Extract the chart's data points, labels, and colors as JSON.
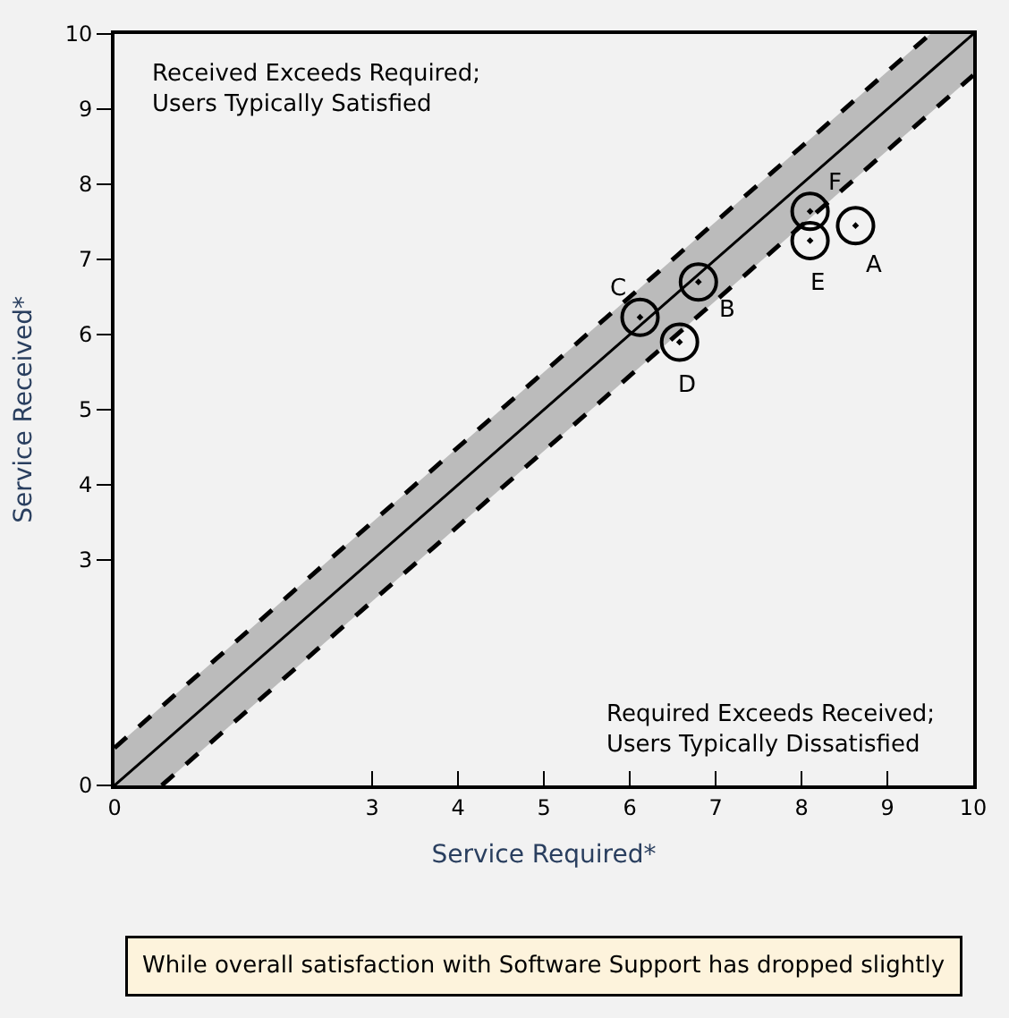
{
  "chart_data": {
    "type": "scatter",
    "xlabel": "Service Required*",
    "ylabel": "Service Received*",
    "series": [
      {
        "type": "line",
        "color": "#000000",
        "x": [
          0,
          0.55,
          9.5,
          10
        ],
        "values": [
          0,
          0.55,
          9.5,
          10
        ],
        "lower": [
          0,
          0,
          8.95,
          9.45
        ],
        "upper": [
          0.5,
          1.05,
          10,
          10
        ],
        "line_style": "solid",
        "marker": "none"
      },
      {
        "type": "line",
        "color": "#000000",
        "x": [
          0,
          9.5
        ],
        "values": [
          0.5,
          10
        ],
        "line_style": "dashed",
        "marker": "none"
      },
      {
        "type": "line",
        "color": "#000000",
        "x": [
          0.55,
          10
        ],
        "values": [
          0,
          9.45
        ],
        "line_style": "dashed",
        "marker": "none"
      },
      {
        "color": "#000000",
        "x": [
          8.63,
          6.8,
          6.12,
          6.58,
          8.1,
          8.1
        ],
        "values": [
          7.45,
          6.7,
          6.23,
          5.9,
          7.25,
          7.64
        ],
        "marker": "circle"
      }
    ],
    "annotations": [
      {
        "text": "A",
        "x": 8.63,
        "y": 7.45
      },
      {
        "text": "B",
        "x": 6.8,
        "y": 6.7
      },
      {
        "text": "C",
        "x": 6.12,
        "y": 6.23
      },
      {
        "text": "D",
        "x": 6.58,
        "y": 5.9
      },
      {
        "text": "E",
        "x": 8.1,
        "y": 7.25
      },
      {
        "text": "F",
        "x": 8.1,
        "y": 7.64
      },
      "Received Exceeds Required;\nUsers Typically Satisfied",
      "Required Exceeds Received;\nUsers Typically Dissatisfied",
      "While overall satisfaction with Software Support has dropped slightly"
    ],
    "xlim": [
      0,
      10
    ],
    "ylim": [
      0,
      10
    ],
    "xticks": [
      0,
      3,
      4,
      5,
      6,
      7,
      8,
      9,
      10
    ],
    "yticks": [
      0,
      3,
      4,
      5,
      6,
      7,
      8,
      9,
      10
    ],
    "grid": false
  }
}
